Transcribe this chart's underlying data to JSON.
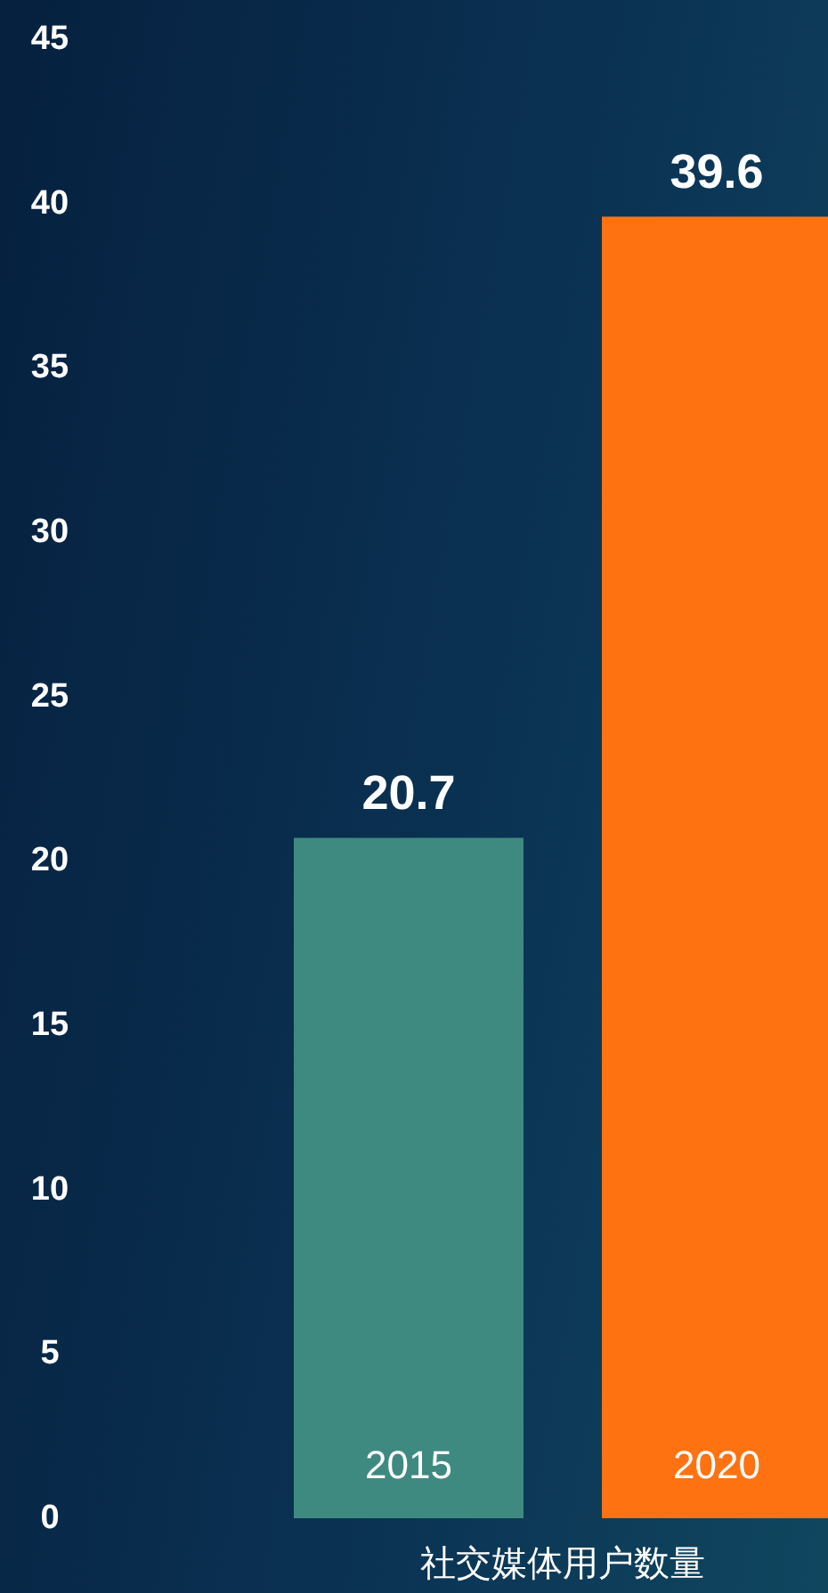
{
  "chart_data": {
    "type": "bar",
    "xlabel": "社交媒体用户数量",
    "categories": [
      "2015",
      "2020"
    ],
    "values": [
      20.7,
      39.6
    ],
    "colors": [
      "#3f8a80",
      "#ff7212"
    ],
    "ylim": [
      0,
      45
    ],
    "yticks": [
      0,
      5,
      10,
      15,
      20,
      25,
      30,
      35,
      40,
      45
    ],
    "data_labels": true,
    "grid": false
  }
}
